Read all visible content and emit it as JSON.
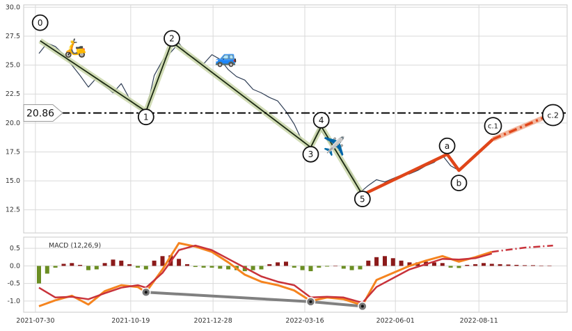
{
  "chart_data": {
    "type": "line",
    "price_panel": {
      "ylim": [
        10.5,
        30.2
      ],
      "yticks": [
        "12.5",
        "15.0",
        "17.5",
        "20.0",
        "22.5",
        "25.0",
        "27.5",
        "30.0"
      ],
      "price_series": [
        {
          "x": "2021-08-02",
          "y": 26.0
        },
        {
          "x": "2021-08-09",
          "y": 26.9
        },
        {
          "x": "2021-08-16",
          "y": 26.6
        },
        {
          "x": "2021-08-23",
          "y": 25.9
        },
        {
          "x": "2021-08-30",
          "y": 25.0
        },
        {
          "x": "2021-09-06",
          "y": 24.1
        },
        {
          "x": "2021-09-13",
          "y": 23.1
        },
        {
          "x": "2021-09-20",
          "y": 23.9
        },
        {
          "x": "2021-09-27",
          "y": 23.2
        },
        {
          "x": "2021-10-04",
          "y": 22.6
        },
        {
          "x": "2021-10-11",
          "y": 23.4
        },
        {
          "x": "2021-10-18",
          "y": 22.1
        },
        {
          "x": "2021-10-25",
          "y": 21.3
        },
        {
          "x": "2021-11-01",
          "y": 20.9
        },
        {
          "x": "2021-11-08",
          "y": 24.1
        },
        {
          "x": "2021-11-15",
          "y": 25.4
        },
        {
          "x": "2021-11-22",
          "y": 26.1
        },
        {
          "x": "2021-11-29",
          "y": 26.9
        },
        {
          "x": "2021-12-06",
          "y": 25.9
        },
        {
          "x": "2021-12-13",
          "y": 25.6
        },
        {
          "x": "2021-12-20",
          "y": 25.1
        },
        {
          "x": "2021-12-27",
          "y": 25.9
        },
        {
          "x": "2022-01-03",
          "y": 25.5
        },
        {
          "x": "2022-01-10",
          "y": 24.6
        },
        {
          "x": "2022-01-17",
          "y": 24.0
        },
        {
          "x": "2022-01-24",
          "y": 23.7
        },
        {
          "x": "2022-01-31",
          "y": 22.9
        },
        {
          "x": "2022-02-07",
          "y": 22.6
        },
        {
          "x": "2022-02-14",
          "y": 22.2
        },
        {
          "x": "2022-02-21",
          "y": 21.9
        },
        {
          "x": "2022-02-28",
          "y": 21.0
        },
        {
          "x": "2022-03-07",
          "y": 19.9
        },
        {
          "x": "2022-03-14",
          "y": 18.4
        },
        {
          "x": "2022-03-21",
          "y": 17.9
        },
        {
          "x": "2022-03-28",
          "y": 19.6
        },
        {
          "x": "2022-04-04",
          "y": 18.6
        },
        {
          "x": "2022-04-11",
          "y": 17.6
        },
        {
          "x": "2022-04-18",
          "y": 16.6
        },
        {
          "x": "2022-04-25",
          "y": 15.6
        },
        {
          "x": "2022-05-02",
          "y": 14.0
        },
        {
          "x": "2022-05-09",
          "y": 14.6
        },
        {
          "x": "2022-05-16",
          "y": 15.1
        },
        {
          "x": "2022-05-23",
          "y": 14.9
        },
        {
          "x": "2022-05-30",
          "y": 15.2
        },
        {
          "x": "2022-06-06",
          "y": 15.5
        },
        {
          "x": "2022-06-13",
          "y": 15.6
        },
        {
          "x": "2022-06-20",
          "y": 15.9
        },
        {
          "x": "2022-06-27",
          "y": 16.3
        },
        {
          "x": "2022-07-04",
          "y": 16.6
        },
        {
          "x": "2022-07-11",
          "y": 17.2
        },
        {
          "x": "2022-07-18",
          "y": 16.3
        },
        {
          "x": "2022-07-25",
          "y": 15.9
        },
        {
          "x": "2022-08-01",
          "y": 16.6
        },
        {
          "x": "2022-08-08",
          "y": 17.2
        },
        {
          "x": "2022-08-15",
          "y": 17.8
        }
      ],
      "wave_path": [
        {
          "x": "2021-08-03",
          "y": 27.1,
          "label": "0"
        },
        {
          "x": "2021-11-01",
          "y": 21.0,
          "label": "1"
        },
        {
          "x": "2021-11-23",
          "y": 27.0,
          "label": "2"
        },
        {
          "x": "2022-03-21",
          "y": 17.9,
          "label": "3"
        },
        {
          "x": "2022-03-30",
          "y": 19.7,
          "label": "4"
        },
        {
          "x": "2022-05-04",
          "y": 13.8,
          "label": "5"
        }
      ],
      "correction_path": [
        {
          "x": "2022-05-04",
          "y": 13.8
        },
        {
          "x": "2022-07-15",
          "y": 17.3,
          "label": "a"
        },
        {
          "x": "2022-07-25",
          "y": 15.9,
          "label": "b"
        },
        {
          "x": "2022-08-23",
          "y": 18.6,
          "label": "c.1"
        }
      ],
      "projection_path": [
        {
          "x": "2022-08-23",
          "y": 18.6
        },
        {
          "x": "2022-10-13",
          "y": 20.8,
          "label": "c.2"
        }
      ],
      "level": {
        "value": 20.86,
        "label": "20.86"
      },
      "icons": [
        {
          "name": "scooter-icon",
          "glyph": "🛵",
          "x": "2021-09-02",
          "y": 26.5
        },
        {
          "name": "car-icon",
          "glyph": "🚙",
          "x": "2022-01-08",
          "y": 25.7
        },
        {
          "name": "airplane-icon",
          "glyph": "✈️",
          "x": "2022-04-10",
          "y": 18.0
        }
      ]
    },
    "macd_panel": {
      "title": "MACD (12,26,9)",
      "ylim": [
        -1.32,
        0.82
      ],
      "yticks": [
        "-1.0",
        "-0.5",
        "0.0",
        "0.5"
      ],
      "macd_line": [
        {
          "x": "2021-08-02",
          "y": -1.15
        },
        {
          "x": "2021-08-16",
          "y": -0.98
        },
        {
          "x": "2021-08-30",
          "y": -0.85
        },
        {
          "x": "2021-09-13",
          "y": -1.1
        },
        {
          "x": "2021-09-27",
          "y": -0.72
        },
        {
          "x": "2021-10-11",
          "y": -0.55
        },
        {
          "x": "2021-10-25",
          "y": -0.6
        },
        {
          "x": "2021-11-01",
          "y": -0.75
        },
        {
          "x": "2021-11-15",
          "y": -0.1
        },
        {
          "x": "2021-11-29",
          "y": 0.65
        },
        {
          "x": "2021-12-13",
          "y": 0.55
        },
        {
          "x": "2021-12-27",
          "y": 0.4
        },
        {
          "x": "2022-01-10",
          "y": 0.1
        },
        {
          "x": "2022-01-24",
          "y": -0.25
        },
        {
          "x": "2022-02-07",
          "y": -0.45
        },
        {
          "x": "2022-02-21",
          "y": -0.55
        },
        {
          "x": "2022-03-07",
          "y": -0.7
        },
        {
          "x": "2022-03-21",
          "y": -1.0
        },
        {
          "x": "2022-04-04",
          "y": -0.9
        },
        {
          "x": "2022-04-18",
          "y": -0.95
        },
        {
          "x": "2022-05-04",
          "y": -1.12
        },
        {
          "x": "2022-05-16",
          "y": -0.4
        },
        {
          "x": "2022-05-30",
          "y": -0.2
        },
        {
          "x": "2022-06-13",
          "y": 0.0
        },
        {
          "x": "2022-06-27",
          "y": 0.15
        },
        {
          "x": "2022-07-11",
          "y": 0.28
        },
        {
          "x": "2022-07-25",
          "y": 0.12
        },
        {
          "x": "2022-08-08",
          "y": 0.25
        },
        {
          "x": "2022-08-22",
          "y": 0.4
        }
      ],
      "signal_line": [
        {
          "x": "2021-08-02",
          "y": -0.62
        },
        {
          "x": "2021-08-16",
          "y": -0.9
        },
        {
          "x": "2021-08-30",
          "y": -0.88
        },
        {
          "x": "2021-09-13",
          "y": -0.95
        },
        {
          "x": "2021-09-27",
          "y": -0.78
        },
        {
          "x": "2021-10-11",
          "y": -0.62
        },
        {
          "x": "2021-10-25",
          "y": -0.55
        },
        {
          "x": "2021-11-01",
          "y": -0.62
        },
        {
          "x": "2021-11-15",
          "y": -0.2
        },
        {
          "x": "2021-11-29",
          "y": 0.45
        },
        {
          "x": "2021-12-13",
          "y": 0.58
        },
        {
          "x": "2021-12-27",
          "y": 0.45
        },
        {
          "x": "2022-01-10",
          "y": 0.2
        },
        {
          "x": "2022-01-24",
          "y": -0.05
        },
        {
          "x": "2022-02-07",
          "y": -0.3
        },
        {
          "x": "2022-02-21",
          "y": -0.45
        },
        {
          "x": "2022-03-07",
          "y": -0.55
        },
        {
          "x": "2022-03-21",
          "y": -0.9
        },
        {
          "x": "2022-04-04",
          "y": -0.88
        },
        {
          "x": "2022-04-18",
          "y": -0.9
        },
        {
          "x": "2022-05-04",
          "y": -1.05
        },
        {
          "x": "2022-05-16",
          "y": -0.6
        },
        {
          "x": "2022-05-30",
          "y": -0.35
        },
        {
          "x": "2022-06-13",
          "y": -0.1
        },
        {
          "x": "2022-06-27",
          "y": 0.05
        },
        {
          "x": "2022-07-11",
          "y": 0.2
        },
        {
          "x": "2022-07-25",
          "y": 0.18
        },
        {
          "x": "2022-08-08",
          "y": 0.22
        },
        {
          "x": "2022-08-22",
          "y": 0.35
        }
      ],
      "macd_projection": [
        {
          "x": "2022-08-22",
          "y": 0.4
        },
        {
          "x": "2022-09-19",
          "y": 0.52
        },
        {
          "x": "2022-10-13",
          "y": 0.58
        }
      ],
      "histogram": [
        {
          "x": "2021-08-02",
          "y": -0.5
        },
        {
          "x": "2021-08-09",
          "y": -0.22
        },
        {
          "x": "2021-08-16",
          "y": -0.05
        },
        {
          "x": "2021-08-23",
          "y": 0.06
        },
        {
          "x": "2021-08-30",
          "y": 0.08
        },
        {
          "x": "2021-09-06",
          "y": 0.03
        },
        {
          "x": "2021-09-13",
          "y": -0.12
        },
        {
          "x": "2021-09-20",
          "y": -0.1
        },
        {
          "x": "2021-09-27",
          "y": 0.08
        },
        {
          "x": "2021-10-04",
          "y": 0.18
        },
        {
          "x": "2021-10-11",
          "y": 0.15
        },
        {
          "x": "2021-10-18",
          "y": 0.05
        },
        {
          "x": "2021-10-25",
          "y": -0.05
        },
        {
          "x": "2021-11-01",
          "y": -0.1
        },
        {
          "x": "2021-11-08",
          "y": 0.15
        },
        {
          "x": "2021-11-15",
          "y": 0.28
        },
        {
          "x": "2021-11-22",
          "y": 0.3
        },
        {
          "x": "2021-11-29",
          "y": 0.2
        },
        {
          "x": "2021-12-06",
          "y": 0.05
        },
        {
          "x": "2021-12-13",
          "y": -0.03
        },
        {
          "x": "2021-12-20",
          "y": -0.05
        },
        {
          "x": "2021-12-27",
          "y": -0.05
        },
        {
          "x": "2022-01-03",
          "y": -0.08
        },
        {
          "x": "2022-01-10",
          "y": -0.1
        },
        {
          "x": "2022-01-17",
          "y": -0.12
        },
        {
          "x": "2022-01-24",
          "y": -0.15
        },
        {
          "x": "2022-01-31",
          "y": -0.12
        },
        {
          "x": "2022-02-07",
          "y": -0.1
        },
        {
          "x": "2022-02-14",
          "y": 0.05
        },
        {
          "x": "2022-02-21",
          "y": 0.1
        },
        {
          "x": "2022-02-28",
          "y": 0.12
        },
        {
          "x": "2022-03-07",
          "y": -0.05
        },
        {
          "x": "2022-03-14",
          "y": -0.12
        },
        {
          "x": "2022-03-21",
          "y": -0.15
        },
        {
          "x": "2022-03-28",
          "y": -0.05
        },
        {
          "x": "2022-04-04",
          "y": -0.02
        },
        {
          "x": "2022-04-11",
          "y": 0.0
        },
        {
          "x": "2022-04-18",
          "y": -0.08
        },
        {
          "x": "2022-04-25",
          "y": -0.12
        },
        {
          "x": "2022-05-02",
          "y": -0.1
        },
        {
          "x": "2022-05-09",
          "y": 0.15
        },
        {
          "x": "2022-05-16",
          "y": 0.25
        },
        {
          "x": "2022-05-23",
          "y": 0.28
        },
        {
          "x": "2022-05-30",
          "y": 0.22
        },
        {
          "x": "2022-06-06",
          "y": 0.15
        },
        {
          "x": "2022-06-13",
          "y": 0.1
        },
        {
          "x": "2022-06-20",
          "y": 0.1
        },
        {
          "x": "2022-06-27",
          "y": 0.12
        },
        {
          "x": "2022-07-04",
          "y": 0.1
        },
        {
          "x": "2022-07-11",
          "y": 0.08
        },
        {
          "x": "2022-07-18",
          "y": -0.05
        },
        {
          "x": "2022-07-25",
          "y": -0.06
        },
        {
          "x": "2022-08-01",
          "y": 0.03
        },
        {
          "x": "2022-08-08",
          "y": 0.05
        },
        {
          "x": "2022-08-15",
          "y": 0.08
        },
        {
          "x": "2022-08-22",
          "y": 0.06
        },
        {
          "x": "2022-08-29",
          "y": 0.05
        },
        {
          "x": "2022-09-05",
          "y": 0.04
        },
        {
          "x": "2022-09-12",
          "y": 0.03
        },
        {
          "x": "2022-09-19",
          "y": 0.02
        },
        {
          "x": "2022-09-26",
          "y": 0.02
        },
        {
          "x": "2022-10-03",
          "y": 0.01
        },
        {
          "x": "2022-10-10",
          "y": 0.01
        }
      ],
      "divergence_line": [
        {
          "x": "2021-11-01",
          "y": -0.75
        },
        {
          "x": "2022-03-21",
          "y": -1.02
        },
        {
          "x": "2022-05-04",
          "y": -1.15
        }
      ]
    },
    "xlim": [
      "2021-07-20",
      "2022-10-25"
    ],
    "xticks": [
      "2021-07-30",
      "2021-10-19",
      "2021-12-28",
      "2022-03-16",
      "2022-06-01",
      "2022-08-11"
    ],
    "grid": true,
    "colors": {
      "price": "#2f3e55",
      "wave": "#1c2a12",
      "wave_halo": "#c9d6a9",
      "correction": "#e0461a",
      "projection": "#f2b8a0",
      "level": "#000000",
      "macd": "#f5841f",
      "signal": "#c8323a",
      "hist_pos": "#8b1a1a",
      "hist_neg": "#6b8e23",
      "divergence": "#808080"
    }
  }
}
